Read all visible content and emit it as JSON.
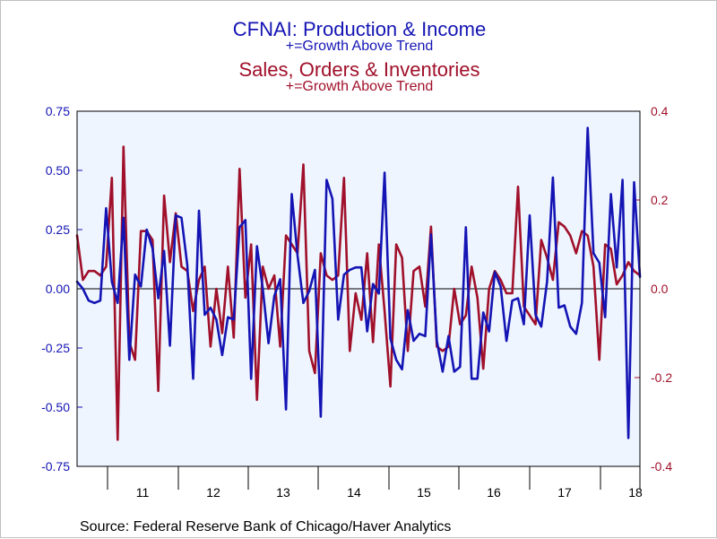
{
  "header": {
    "title1": "CFNAI: Production & Income",
    "subtitle1": "+=Growth Above Trend",
    "title2": "Sales, Orders & Inventories",
    "subtitle2": "+=Growth Above Trend"
  },
  "footer": {
    "source": "Source:  Federal Reserve Bank of Chicago/Haver Analytics"
  },
  "colors": {
    "production_income": "#1414b4",
    "sales_orders": "#a0102a",
    "plot_background": "#eef5ff",
    "axis": "#000000"
  },
  "chart_data": {
    "type": "line",
    "grid": false,
    "x_start": "2010-05",
    "x_frequency": "monthly",
    "x_tick_labels": [
      "11",
      "12",
      "13",
      "14",
      "15",
      "16",
      "17",
      "18"
    ],
    "left_axis": {
      "ylim": [
        -0.75,
        0.75
      ],
      "ticks": [
        0.75,
        0.5,
        0.25,
        0.0,
        -0.25,
        -0.5,
        -0.75
      ],
      "tick_labels": [
        "0.75",
        "0.50",
        "0.25",
        "0.00",
        "-0.25",
        "-0.50",
        "-0.75"
      ]
    },
    "right_axis": {
      "ylim": [
        -0.4,
        0.4
      ],
      "ticks": [
        0.4,
        0.2,
        0.0,
        -0.2,
        -0.4
      ],
      "tick_labels": [
        "0.4",
        "0.2",
        "0.0",
        "-0.2",
        "-0.4"
      ]
    },
    "series": [
      {
        "axis": "left",
        "color": "#1414b4",
        "values": [
          0.03,
          0.0,
          -0.05,
          -0.06,
          -0.05,
          0.34,
          0.03,
          -0.06,
          0.3,
          -0.3,
          0.06,
          0.01,
          0.25,
          0.17,
          -0.04,
          0.16,
          -0.24,
          0.31,
          0.3,
          0.1,
          -0.38,
          0.33,
          -0.11,
          -0.08,
          -0.13,
          -0.28,
          -0.12,
          -0.13,
          0.26,
          0.29,
          -0.38,
          0.18,
          0.0,
          -0.23,
          -0.03,
          0.04,
          -0.51,
          0.4,
          0.14,
          -0.06,
          -0.01,
          0.08,
          -0.54,
          0.46,
          0.38,
          -0.13,
          0.06,
          0.08,
          0.09,
          0.09,
          -0.18,
          0.02,
          -0.02,
          0.49,
          -0.21,
          -0.3,
          -0.34,
          -0.09,
          -0.22,
          -0.19,
          -0.2,
          0.23,
          -0.22,
          -0.35,
          -0.2,
          -0.35,
          -0.33,
          0.26,
          -0.38,
          -0.38,
          -0.1,
          -0.18,
          0.07,
          0.01,
          -0.22,
          -0.05,
          -0.04,
          -0.15,
          0.31,
          -0.11,
          -0.16,
          0.03,
          0.47,
          -0.08,
          -0.07,
          -0.16,
          -0.19,
          -0.06,
          0.68,
          0.15,
          0.11,
          -0.12,
          0.4,
          0.09,
          0.46,
          -0.63,
          0.45,
          0.05
        ]
      },
      {
        "axis": "right",
        "color": "#a0102a",
        "values": [
          0.12,
          0.02,
          0.04,
          0.04,
          0.03,
          0.05,
          0.25,
          -0.34,
          0.32,
          -0.12,
          -0.16,
          0.13,
          0.13,
          0.11,
          -0.23,
          0.21,
          0.06,
          0.17,
          0.05,
          0.04,
          -0.05,
          0.02,
          0.05,
          -0.13,
          0.0,
          -0.1,
          0.05,
          -0.11,
          0.27,
          -0.02,
          0.1,
          -0.25,
          0.05,
          0.0,
          0.03,
          -0.13,
          0.12,
          0.1,
          0.08,
          0.28,
          -0.14,
          -0.19,
          0.08,
          0.03,
          0.02,
          0.03,
          0.25,
          -0.14,
          -0.01,
          -0.07,
          0.08,
          -0.12,
          0.1,
          -0.05,
          -0.22,
          0.1,
          0.07,
          -0.14,
          0.04,
          0.05,
          -0.04,
          0.14,
          -0.13,
          -0.14,
          -0.13,
          0.0,
          -0.08,
          -0.06,
          0.05,
          -0.02,
          -0.18,
          0.0,
          0.04,
          0.02,
          -0.01,
          -0.01,
          0.23,
          -0.04,
          -0.06,
          -0.08,
          0.11,
          0.07,
          0.02,
          0.15,
          0.14,
          0.12,
          0.08,
          0.13,
          0.12,
          0.05,
          -0.16,
          0.1,
          0.09,
          0.01,
          0.03,
          0.06,
          0.04,
          0.03
        ]
      }
    ]
  }
}
